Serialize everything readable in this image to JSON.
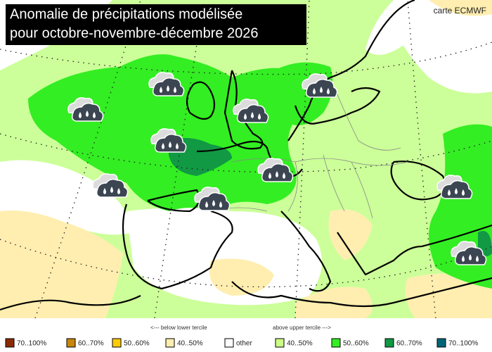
{
  "title": {
    "line1": "Anomalie de précipitations modélisée",
    "line2": "pour octobre-novembre-décembre 2026"
  },
  "credit": "carte ECMWF",
  "legend": {
    "below_label": "<--- below lower tercile",
    "above_label": "above upper tercile --->",
    "items": [
      {
        "label": "70..100%",
        "color": "#8b2a00"
      },
      {
        "label": "60..70%",
        "color": "#c8860a"
      },
      {
        "label": "50..60%",
        "color": "#ffcc00"
      },
      {
        "label": "40..50%",
        "color": "#ffeeb0"
      },
      {
        "label": "other",
        "color": "#ffffff"
      },
      {
        "label": "40..50%",
        "color": "#ccff88"
      },
      {
        "label": "50..60%",
        "color": "#33ee22"
      },
      {
        "label": "60..70%",
        "color": "#119944"
      },
      {
        "label": "70..100%",
        "color": "#006677"
      }
    ]
  }
}
